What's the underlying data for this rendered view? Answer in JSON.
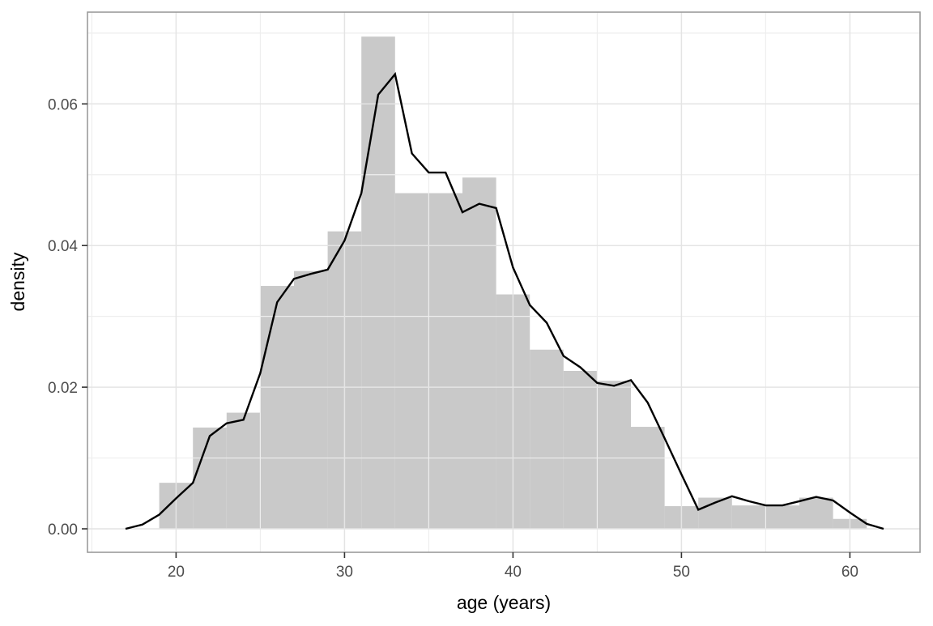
{
  "chart_data": {
    "type": "bar",
    "subtype": "histogram_with_frequency_polygon",
    "title": "",
    "xlabel": "age (years)",
    "ylabel": "density",
    "x_ticks": [
      "20",
      "30",
      "40",
      "50",
      "60"
    ],
    "x_tick_values": [
      20,
      30,
      40,
      50,
      60
    ],
    "y_ticks": [
      "0.00",
      "0.02",
      "0.04",
      "0.06"
    ],
    "y_tick_values": [
      0.0,
      0.02,
      0.04,
      0.06
    ],
    "x_minor_gridlines": [
      15,
      25,
      35,
      45,
      55
    ],
    "y_minor_gridlines": [
      0.01,
      0.03,
      0.05,
      0.07
    ],
    "xlim": [
      14.75,
      64.25
    ],
    "ylim": [
      -0.0035,
      0.073
    ],
    "grid": "major and minor, light gray, drawn over bars",
    "legend": "none",
    "histogram": {
      "binwidth": 2,
      "bin_centers": [
        20,
        22,
        24,
        26,
        28,
        30,
        32,
        34,
        36,
        38,
        40,
        42,
        44,
        46,
        48,
        50,
        52,
        54,
        56,
        58,
        60
      ],
      "densities": [
        0.0065,
        0.0143,
        0.0164,
        0.0343,
        0.0364,
        0.042,
        0.0695,
        0.0474,
        0.0474,
        0.0496,
        0.0331,
        0.0253,
        0.0223,
        0.0209,
        0.0144,
        0.0032,
        0.0044,
        0.0033,
        0.0033,
        0.0044,
        0.0014
      ]
    },
    "freqpoly": {
      "x": [
        17,
        18,
        19,
        20,
        21,
        22,
        23,
        24,
        25,
        26,
        27,
        28,
        29,
        30,
        31,
        32,
        33,
        34,
        35,
        36,
        37,
        38,
        39,
        40,
        41,
        42,
        43,
        44,
        45,
        46,
        47,
        48,
        49,
        50,
        51,
        52,
        53,
        54,
        55,
        56,
        57,
        58,
        59,
        60,
        61,
        62
      ],
      "y": [
        0.0,
        0.0006,
        0.002,
        0.0043,
        0.0065,
        0.0131,
        0.0149,
        0.0154,
        0.022,
        0.032,
        0.0353,
        0.036,
        0.0366,
        0.0407,
        0.0474,
        0.0613,
        0.0642,
        0.053,
        0.0503,
        0.0503,
        0.0447,
        0.0459,
        0.0453,
        0.0369,
        0.0316,
        0.0291,
        0.0244,
        0.0228,
        0.0206,
        0.0202,
        0.021,
        0.0178,
        0.0128,
        0.0077,
        0.0027,
        0.0037,
        0.0046,
        0.0039,
        0.0033,
        0.0033,
        0.0039,
        0.0045,
        0.004,
        0.0023,
        0.0007,
        0.0
      ]
    },
    "colors": {
      "bar_fill": "#c9c9c9",
      "line": "#000000",
      "panel_background": "#ffffff",
      "panel_border": "#9b9b9b",
      "grid_major": "#e4e4e4",
      "grid_minor": "#eeeeee",
      "tick_mark": "#333333",
      "tick_label": "#4d4d4d",
      "axis_title": "#000000"
    }
  }
}
